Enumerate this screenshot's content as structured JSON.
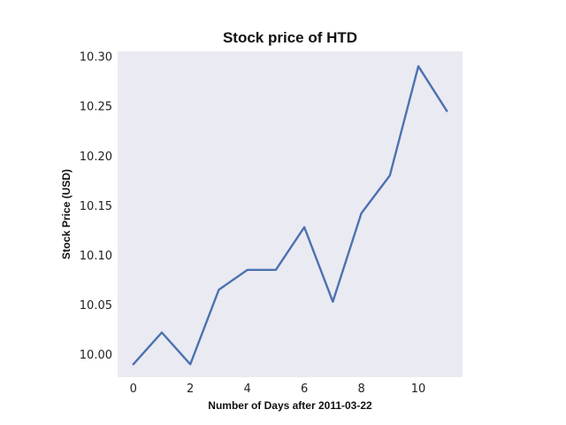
{
  "chart_data": {
    "type": "line",
    "title": "Stock price of HTD",
    "xlabel": "Number of Days after 2011-03-22",
    "ylabel": "Stock Price (USD)",
    "x": [
      0,
      1,
      2,
      3,
      4,
      5,
      6,
      7,
      8,
      9,
      10,
      11
    ],
    "series": [
      {
        "values": [
          9.99,
          10.022,
          9.99,
          10.065,
          10.085,
          10.085,
          10.128,
          10.053,
          10.142,
          10.18,
          10.29,
          10.245
        ]
      }
    ],
    "xlim": [
      -0.55,
      11.55
    ],
    "ylim": [
      9.977,
      10.305
    ],
    "xticks": [
      0,
      2,
      4,
      6,
      8,
      10
    ],
    "xtick_labels": [
      "0",
      "2",
      "4",
      "6",
      "8",
      "10"
    ],
    "yticks": [
      10.0,
      10.05,
      10.1,
      10.15,
      10.2,
      10.25,
      10.3
    ],
    "ytick_labels": [
      "10.00",
      "10.05",
      "10.10",
      "10.15",
      "10.20",
      "10.25",
      "10.30"
    ],
    "grid": false,
    "colors": {
      "plot_background": "#eaeaf2",
      "line": "#4c72b0"
    }
  }
}
